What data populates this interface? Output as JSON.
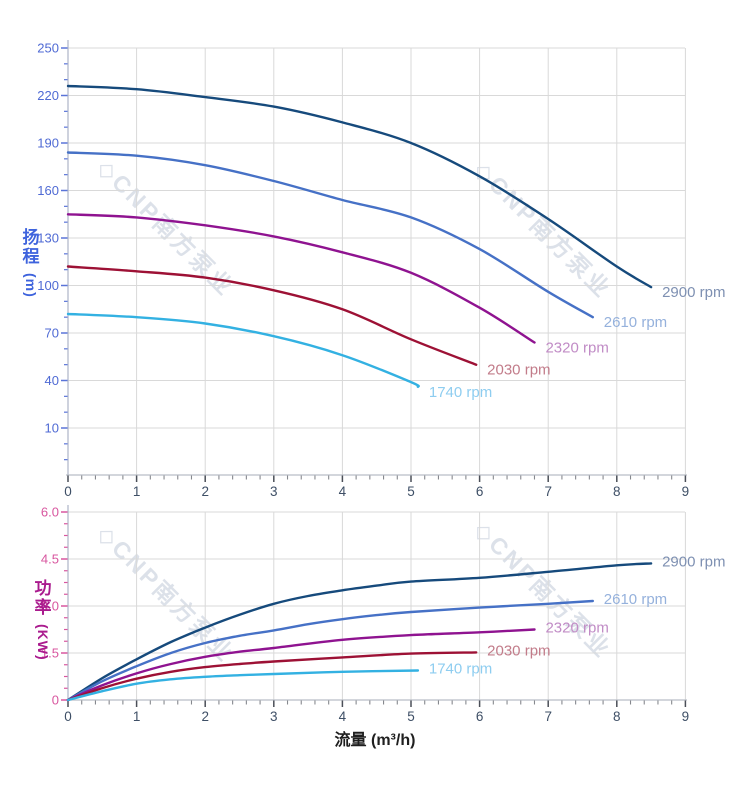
{
  "watermark": {
    "text": "◇CNP南方泵业",
    "color": "rgba(186,195,212,0.5)"
  },
  "x_axis": {
    "label": "流量 (m³/h)",
    "min": 0,
    "max": 9,
    "major_step": 1,
    "minor_step": 0.2,
    "tick_labels": [
      "0",
      "1",
      "2",
      "3",
      "4",
      "5",
      "6",
      "7",
      "8",
      "9"
    ],
    "tick_label_color": "#3e4f66",
    "major_tick_color": "#4b4f58",
    "minor_tick_color": "#86888e",
    "axis_line_color": "#b9bec6",
    "grid_color": "#d9d9d9"
  },
  "chart_data": [
    {
      "id": "head",
      "type": "line",
      "ylabel_chars": [
        "扬",
        "程"
      ],
      "ylabel_unit": "(m)",
      "ylabel_color": "#3e63dd",
      "tick_label_color": "#4f6ad4",
      "tick_color": "#5a74d8",
      "grid": true,
      "ylim": [
        -20,
        255
      ],
      "xlim": [
        0,
        9
      ],
      "y_ticks": [
        {
          "v": 10,
          "label": "10"
        },
        {
          "v": 40,
          "label": "40"
        },
        {
          "v": 70,
          "label": "70"
        },
        {
          "v": 100,
          "label": "100"
        },
        {
          "v": 130,
          "label": "130"
        },
        {
          "v": 160,
          "label": "160"
        },
        {
          "v": 190,
          "label": "190"
        },
        {
          "v": 220,
          "label": "220"
        },
        {
          "v": 250,
          "label": "250"
        }
      ],
      "y_minor_step": 10,
      "y_minor_min": -10,
      "y_minor_max": 250,
      "series": [
        {
          "name": "2900 rpm",
          "color": "#164a7c",
          "label_color": "#7e90b2",
          "points": [
            [
              0,
              226
            ],
            [
              1,
              224
            ],
            [
              2,
              219
            ],
            [
              3,
              213
            ],
            [
              4,
              203
            ],
            [
              5,
              190
            ],
            [
              6,
              169
            ],
            [
              7,
              142
            ],
            [
              8,
              112
            ],
            [
              8.5,
              99
            ]
          ]
        },
        {
          "name": "2610 rpm",
          "color": "#4671c6",
          "label_color": "#95b1dc",
          "points": [
            [
              0,
              184
            ],
            [
              1,
              182
            ],
            [
              2,
              176
            ],
            [
              3,
              166
            ],
            [
              4,
              154
            ],
            [
              5,
              143
            ],
            [
              6,
              123
            ],
            [
              7,
              96
            ],
            [
              7.65,
              80
            ]
          ]
        },
        {
          "name": "2320 rpm",
          "color": "#8f1390",
          "label_color": "#c18cc6",
          "points": [
            [
              0,
              145
            ],
            [
              1,
              143
            ],
            [
              2,
              138
            ],
            [
              3,
              131
            ],
            [
              4,
              121
            ],
            [
              5,
              108
            ],
            [
              6,
              86
            ],
            [
              6.8,
              64
            ]
          ]
        },
        {
          "name": "2030 rpm",
          "color": "#9d1135",
          "label_color": "#c27c8a",
          "points": [
            [
              0,
              112
            ],
            [
              1,
              109
            ],
            [
              2,
              105
            ],
            [
              3,
              97
            ],
            [
              4,
              85
            ],
            [
              5,
              66
            ],
            [
              5.95,
              50
            ]
          ]
        },
        {
          "name": "1740 rpm",
          "color": "#33b1e2",
          "label_color": "#8ecdf0",
          "points": [
            [
              0,
              82
            ],
            [
              1,
              80
            ],
            [
              2,
              76
            ],
            [
              3,
              68
            ],
            [
              4,
              56
            ],
            [
              5,
              39
            ],
            [
              5.1,
              36
            ]
          ]
        }
      ]
    },
    {
      "id": "power",
      "type": "line",
      "ylabel_chars": [
        "功",
        "率"
      ],
      "ylabel_unit": "(KW)",
      "ylabel_color": "#aa1b8e",
      "tick_label_color": "#d8569f",
      "tick_color": "#d8569f",
      "grid": true,
      "ylim": [
        0,
        6.2
      ],
      "xlim": [
        0,
        9
      ],
      "y_ticks": [
        {
          "v": 0,
          "label": "0"
        },
        {
          "v": 1.5,
          "label": "1.5"
        },
        {
          "v": 3,
          "label": "3.0"
        },
        {
          "v": 4.5,
          "label": "4.5"
        },
        {
          "v": 6,
          "label": "6.0"
        }
      ],
      "y_minor_step": 0.375,
      "y_minor_min": 0.375,
      "y_minor_max": 6,
      "series": [
        {
          "name": "2900 rpm",
          "color": "#164a7c",
          "label_color": "#7e90b2",
          "points": [
            [
              0,
              0
            ],
            [
              0.5,
              0.7
            ],
            [
              1,
              1.3
            ],
            [
              1.5,
              1.85
            ],
            [
              2,
              2.31
            ],
            [
              2.5,
              2.72
            ],
            [
              3,
              3.07
            ],
            [
              3.5,
              3.32
            ],
            [
              4,
              3.5
            ],
            [
              4.5,
              3.65
            ],
            [
              5,
              3.78
            ],
            [
              6,
              3.9
            ],
            [
              7,
              4.09
            ],
            [
              8,
              4.3
            ],
            [
              8.5,
              4.36
            ]
          ]
        },
        {
          "name": "2610 rpm",
          "color": "#4671c6",
          "label_color": "#95b1dc",
          "points": [
            [
              0,
              0
            ],
            [
              0.5,
              0.6
            ],
            [
              1,
              1.08
            ],
            [
              1.5,
              1.5
            ],
            [
              2,
              1.82
            ],
            [
              2.5,
              2.05
            ],
            [
              3,
              2.22
            ],
            [
              3.5,
              2.42
            ],
            [
              4,
              2.58
            ],
            [
              4.5,
              2.71
            ],
            [
              5,
              2.81
            ],
            [
              6,
              2.95
            ],
            [
              7,
              3.07
            ],
            [
              7.65,
              3.16
            ]
          ]
        },
        {
          "name": "2320 rpm",
          "color": "#8f1390",
          "label_color": "#c18cc6",
          "points": [
            [
              0,
              0
            ],
            [
              0.5,
              0.47
            ],
            [
              1,
              0.85
            ],
            [
              1.5,
              1.15
            ],
            [
              2,
              1.38
            ],
            [
              2.5,
              1.54
            ],
            [
              3,
              1.66
            ],
            [
              4,
              1.92
            ],
            [
              5,
              2.07
            ],
            [
              6,
              2.16
            ],
            [
              6.8,
              2.25
            ]
          ]
        },
        {
          "name": "2030 rpm",
          "color": "#9d1135",
          "label_color": "#c27c8a",
          "points": [
            [
              0,
              0
            ],
            [
              0.5,
              0.38
            ],
            [
              1,
              0.68
            ],
            [
              1.5,
              0.9
            ],
            [
              2,
              1.05
            ],
            [
              2.5,
              1.15
            ],
            [
              3,
              1.23
            ],
            [
              4,
              1.36
            ],
            [
              5,
              1.48
            ],
            [
              5.95,
              1.52
            ]
          ]
        },
        {
          "name": "1740 rpm",
          "color": "#33b1e2",
          "label_color": "#8ecdf0",
          "points": [
            [
              0,
              0
            ],
            [
              0.5,
              0.28
            ],
            [
              1,
              0.52
            ],
            [
              1.5,
              0.66
            ],
            [
              2,
              0.74
            ],
            [
              2.5,
              0.79
            ],
            [
              3,
              0.83
            ],
            [
              4,
              0.9
            ],
            [
              5.1,
              0.94
            ]
          ]
        }
      ]
    }
  ]
}
